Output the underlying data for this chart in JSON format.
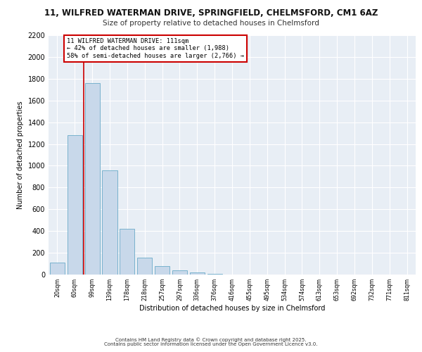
{
  "title1": "11, WILFRED WATERMAN DRIVE, SPRINGFIELD, CHELMSFORD, CM1 6AZ",
  "title2": "Size of property relative to detached houses in Chelmsford",
  "xlabel": "Distribution of detached houses by size in Chelmsford",
  "ylabel": "Number of detached properties",
  "bar_labels": [
    "20sqm",
    "60sqm",
    "99sqm",
    "139sqm",
    "178sqm",
    "218sqm",
    "257sqm",
    "297sqm",
    "336sqm",
    "376sqm",
    "416sqm",
    "455sqm",
    "495sqm",
    "534sqm",
    "574sqm",
    "613sqm",
    "653sqm",
    "692sqm",
    "732sqm",
    "771sqm",
    "811sqm"
  ],
  "bar_values": [
    110,
    1280,
    1760,
    960,
    420,
    155,
    75,
    40,
    20,
    5,
    2,
    1,
    0,
    0,
    0,
    0,
    0,
    0,
    0,
    0,
    0
  ],
  "bar_color": "#c8d8ea",
  "bar_edge_color": "#6aaac8",
  "vline_color": "#cc0000",
  "vline_x": 1.5,
  "annotation_text": "11 WILFRED WATERMAN DRIVE: 111sqm\n← 42% of detached houses are smaller (1,988)\n58% of semi-detached houses are larger (2,766) →",
  "annotation_box_color": "#ffffff",
  "annotation_box_edge_color": "#cc0000",
  "ylim": [
    0,
    2200
  ],
  "yticks": [
    0,
    200,
    400,
    600,
    800,
    1000,
    1200,
    1400,
    1600,
    1800,
    2000,
    2200
  ],
  "bg_color": "#e8eef5",
  "grid_color": "#ffffff",
  "footer1": "Contains HM Land Registry data © Crown copyright and database right 2025.",
  "footer2": "Contains public sector information licensed under the Open Government Licence v3.0."
}
